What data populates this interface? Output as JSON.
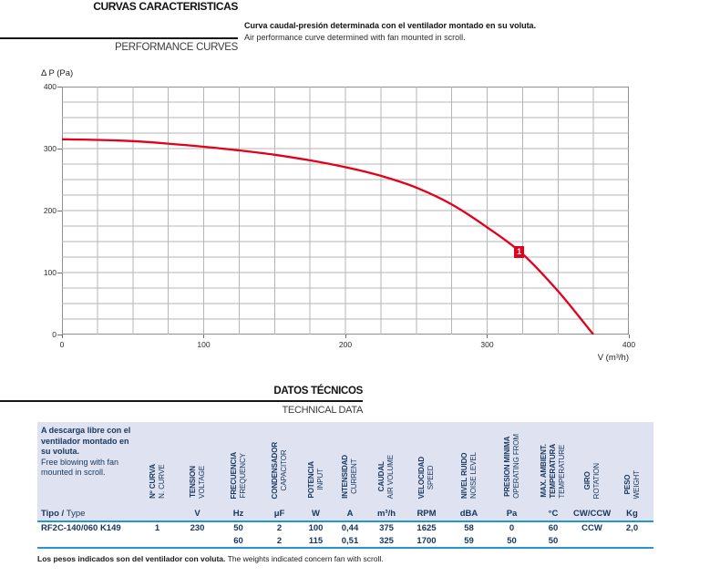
{
  "header": {
    "title_es": "CURVAS CARACTERISTICAS",
    "title_en": "PERFORMANCE CURVES",
    "note_es": "Curva caudal-presión determinada con el ventilador montado en su voluta.",
    "note_en": "Air performance curve determined with fan mounted in scroll."
  },
  "chart_data": {
    "type": "line",
    "title": "",
    "xlabel": "V (m³/h)",
    "ylabel": "Δ P (Pa)",
    "xlim": [
      0,
      400
    ],
    "ylim": [
      0,
      400
    ],
    "x_ticks": [
      0,
      100,
      200,
      300,
      400
    ],
    "y_ticks": [
      0,
      100,
      200,
      300,
      400
    ],
    "grid_step": 25,
    "grid": true,
    "legend": false,
    "series": [
      {
        "name": "1",
        "color": "#e2001a",
        "points": [
          [
            0,
            315
          ],
          [
            25,
            314
          ],
          [
            50,
            312
          ],
          [
            75,
            308
          ],
          [
            100,
            303
          ],
          [
            125,
            297
          ],
          [
            150,
            290
          ],
          [
            175,
            281
          ],
          [
            200,
            270
          ],
          [
            225,
            256
          ],
          [
            250,
            237
          ],
          [
            275,
            210
          ],
          [
            300,
            173
          ],
          [
            325,
            130
          ],
          [
            350,
            70
          ],
          [
            375,
            0
          ]
        ]
      }
    ],
    "marker": {
      "label": "1",
      "x": 322,
      "y": 134
    }
  },
  "datos": {
    "title_es": "DATOS TÉCNICOS",
    "title_en": "TECHNICAL DATA"
  },
  "table": {
    "intro_es": "A descarga libre con el ventilador montado en su voluta.",
    "intro_en": "Free blowing with fan mounted in scroll.",
    "tipo_es": "Tipo /",
    "tipo_en": "Type",
    "columns": [
      {
        "es": "Nº CURVA",
        "en": "N. CURVE",
        "unit": ""
      },
      {
        "es": "TENSION",
        "en": "VOLTAGE",
        "unit": "V"
      },
      {
        "es": "FRECUENCIA",
        "en": "FREQUENCY",
        "unit": "Hz"
      },
      {
        "es": "CONDENSADOR",
        "en": "CAPACITOR",
        "unit": "μF"
      },
      {
        "es": "POTENCIA",
        "en": "INPUT",
        "unit": "W"
      },
      {
        "es": "INTENSIDAD",
        "en": "CURRENT",
        "unit": "A"
      },
      {
        "es": "CAUDAL",
        "en": "AIR VOLUME",
        "unit": "m³/h"
      },
      {
        "es": "VELOCIDAD",
        "en": "SPEED",
        "unit": "RPM"
      },
      {
        "es": "NIVEL RUIDO",
        "en": "NOISE LEVEL",
        "unit": "dBA"
      },
      {
        "es": "PRESION MINIMA",
        "en": "OPERATING FROM",
        "unit": "Pa"
      },
      {
        "es": "MAX. AMBIENT.",
        "es2": "TEMPERATURA",
        "en": "TEMPERATURE",
        "unit": "°C"
      },
      {
        "es": "GIRO",
        "en": "ROTATION",
        "unit": "CW/CCW"
      },
      {
        "es": "PESO",
        "en": "WEIGHT",
        "unit": "Kg"
      }
    ],
    "rows": [
      {
        "tipo": "RF2C-140/060 K149",
        "values": [
          "1",
          "230",
          "50",
          "2",
          "100",
          "0,44",
          "375",
          "1625",
          "58",
          "0",
          "60",
          "CCW",
          "2,0"
        ]
      },
      {
        "tipo": "",
        "values": [
          "",
          "",
          "60",
          "2",
          "115",
          "0,51",
          "325",
          "1700",
          "59",
          "50",
          "50",
          "",
          ""
        ]
      }
    ]
  },
  "footer": {
    "note_es": "Los pesos indicados son del ventilador con voluta.",
    "note_en": "The weights indicated concern fan with scroll."
  }
}
